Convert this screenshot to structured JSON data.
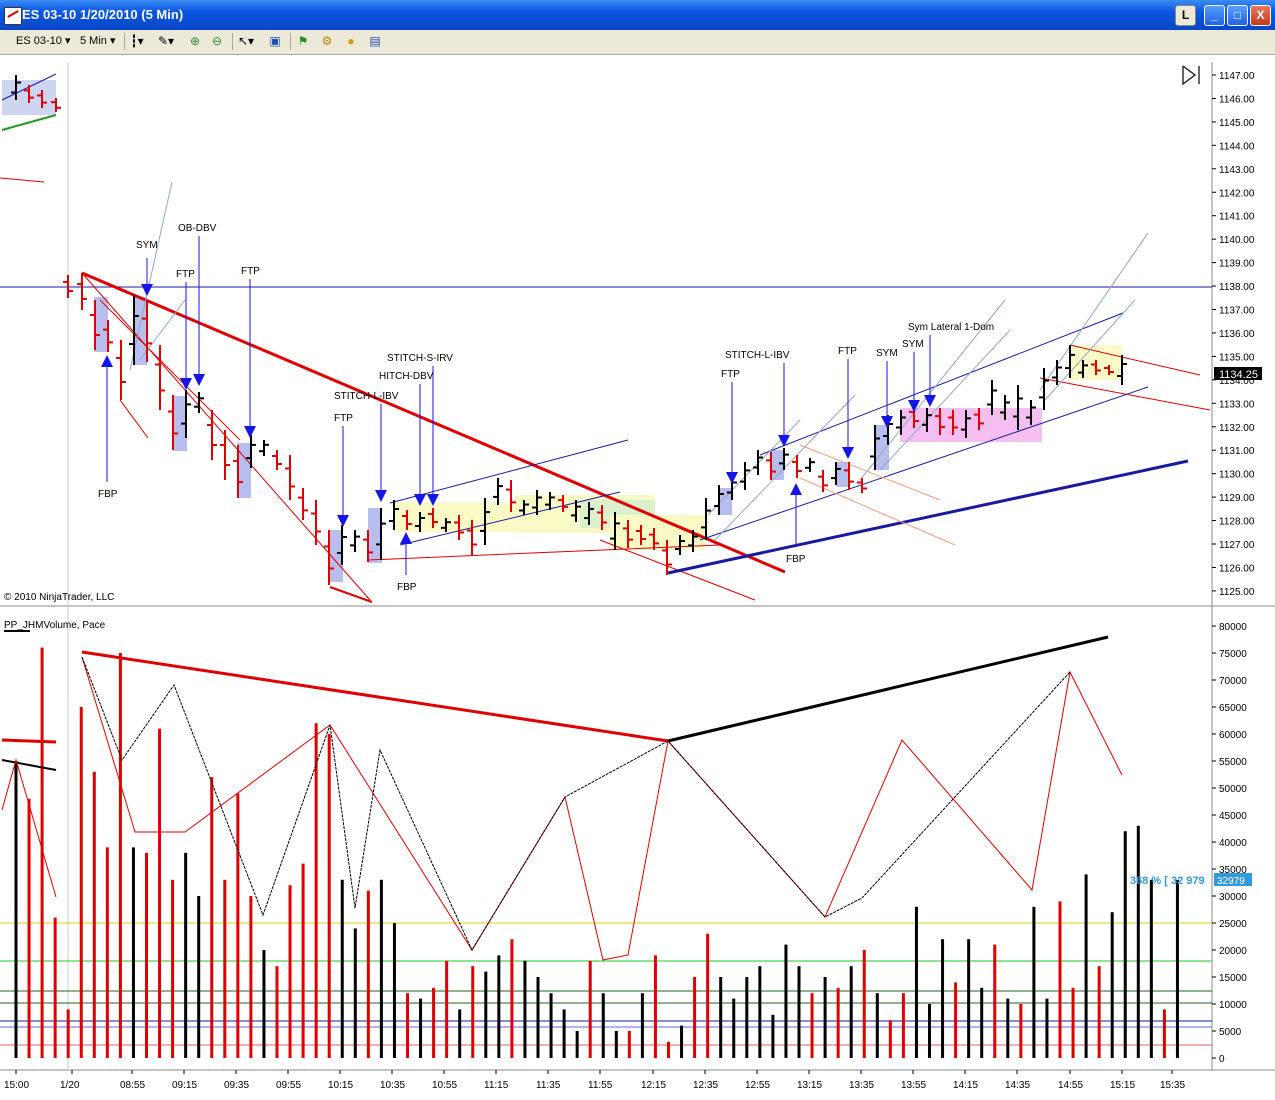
{
  "window": {
    "title": "ES 03-10  1/20/2010 (5 Min)",
    "btn_l": "L",
    "btn_min": "_",
    "btn_max": "□",
    "btn_close": "X"
  },
  "toolbar": {
    "instrument": "ES 03-10",
    "period": "5 Min",
    "icons": [
      "bar-type-icon",
      "draw-icon",
      "zoom-in-icon",
      "zoom-out-icon",
      "cursor-icon",
      "properties-icon",
      "strategy-icon",
      "indicator-icon",
      "data-box-icon"
    ]
  },
  "price_panel": {
    "copyright": "© 2010 NinjaTrader, LLC",
    "current_price": "1134.25",
    "price_axis": [
      "1147.00",
      "1146.00",
      "1145.00",
      "1144.00",
      "1143.00",
      "1142.00",
      "1141.00",
      "1140.00",
      "1139.00",
      "1138.00",
      "1137.00",
      "1136.00",
      "1135.00",
      "1134.00",
      "1133.00",
      "1132.00",
      "1131.00",
      "1130.00",
      "1129.00",
      "1128.00",
      "1127.00",
      "1126.00",
      "1125.00"
    ],
    "annotations": [
      "SYM",
      "OB-DBV",
      "FTP",
      "FTP",
      "FBP",
      "FTP",
      "STITCH-S-IRV",
      "HITCH-DBV",
      "STITCH-L-IBV",
      "FBP",
      "STITCH-L-IBV",
      "FTP",
      "FTP",
      "SYM",
      "SYM",
      "Sym Lateral 1-Dom",
      "FBP"
    ]
  },
  "volume_panel": {
    "label": "PP_JHMVolume, Pace",
    "pace_text": "368 % [ 32 979",
    "pace_value": "32979",
    "volume_axis": [
      "80000",
      "75000",
      "70000",
      "65000",
      "60000",
      "55000",
      "50000",
      "45000",
      "40000",
      "35000",
      "30000",
      "25000",
      "20000",
      "15000",
      "10000",
      "5000",
      "0"
    ]
  },
  "time_axis": [
    "15:00",
    "1/20",
    "08:55",
    "09:15",
    "09:35",
    "09:55",
    "10:15",
    "10:35",
    "10:55",
    "11:15",
    "11:35",
    "11:55",
    "12:15",
    "12:35",
    "12:55",
    "13:15",
    "13:35",
    "13:55",
    "14:15",
    "14:35",
    "14:55",
    "15:15",
    "15:35"
  ],
  "colors": {
    "up": "#000000",
    "down": "#e00000",
    "arrow": "#1515e6",
    "trend": "#e00000",
    "channel": "#1a1aa0",
    "pace": "#3399dd"
  },
  "volume_bars": [
    {
      "v": 55000,
      "c": "k"
    },
    {
      "v": 48000,
      "c": "r"
    },
    {
      "v": 76000,
      "c": "r"
    },
    {
      "v": 26000,
      "c": "r"
    },
    {
      "v": 9000,
      "c": "r"
    },
    {
      "v": 65000,
      "c": "r"
    },
    {
      "v": 53000,
      "c": "r"
    },
    {
      "v": 39000,
      "c": "r"
    },
    {
      "v": 75000,
      "c": "r"
    },
    {
      "v": 39000,
      "c": "k"
    },
    {
      "v": 38000,
      "c": "r"
    },
    {
      "v": 61000,
      "c": "r"
    },
    {
      "v": 33000,
      "c": "r"
    },
    {
      "v": 38000,
      "c": "k"
    },
    {
      "v": 30000,
      "c": "k"
    },
    {
      "v": 52000,
      "c": "r"
    },
    {
      "v": 33000,
      "c": "r"
    },
    {
      "v": 49000,
      "c": "r"
    },
    {
      "v": 30000,
      "c": "r"
    },
    {
      "v": 20000,
      "c": "k"
    },
    {
      "v": 17000,
      "c": "r"
    },
    {
      "v": 32000,
      "c": "r"
    },
    {
      "v": 36000,
      "c": "r"
    },
    {
      "v": 62000,
      "c": "r"
    },
    {
      "v": 60000,
      "c": "r"
    },
    {
      "v": 33000,
      "c": "k"
    },
    {
      "v": 24000,
      "c": "k"
    },
    {
      "v": 31000,
      "c": "r"
    },
    {
      "v": 33000,
      "c": "k"
    },
    {
      "v": 25000,
      "c": "k"
    },
    {
      "v": 12000,
      "c": "r"
    },
    {
      "v": 11000,
      "c": "k"
    },
    {
      "v": 13000,
      "c": "r"
    },
    {
      "v": 18000,
      "c": "r"
    },
    {
      "v": 9000,
      "c": "k"
    },
    {
      "v": 17000,
      "c": "r"
    },
    {
      "v": 16000,
      "c": "k"
    },
    {
      "v": 19000,
      "c": "k"
    },
    {
      "v": 22000,
      "c": "r"
    },
    {
      "v": 18000,
      "c": "k"
    },
    {
      "v": 15000,
      "c": "k"
    },
    {
      "v": 12000,
      "c": "k"
    },
    {
      "v": 9000,
      "c": "k"
    },
    {
      "v": 5000,
      "c": "k"
    },
    {
      "v": 18000,
      "c": "r"
    },
    {
      "v": 12000,
      "c": "k"
    },
    {
      "v": 5000,
      "c": "k"
    },
    {
      "v": 5000,
      "c": "r"
    },
    {
      "v": 12000,
      "c": "k"
    },
    {
      "v": 19000,
      "c": "r"
    },
    {
      "v": 3000,
      "c": "r"
    },
    {
      "v": 6000,
      "c": "k"
    },
    {
      "v": 15000,
      "c": "r"
    },
    {
      "v": 23000,
      "c": "r"
    },
    {
      "v": 15000,
      "c": "k"
    },
    {
      "v": 11000,
      "c": "k"
    },
    {
      "v": 15000,
      "c": "k"
    },
    {
      "v": 17000,
      "c": "k"
    },
    {
      "v": 8000,
      "c": "k"
    },
    {
      "v": 21000,
      "c": "k"
    },
    {
      "v": 17000,
      "c": "k"
    },
    {
      "v": 12000,
      "c": "r"
    },
    {
      "v": 15000,
      "c": "k"
    },
    {
      "v": 13000,
      "c": "r"
    },
    {
      "v": 17000,
      "c": "k"
    },
    {
      "v": 20000,
      "c": "r"
    },
    {
      "v": 12000,
      "c": "k"
    },
    {
      "v": 7000,
      "c": "r"
    },
    {
      "v": 12000,
      "c": "r"
    },
    {
      "v": 28000,
      "c": "k"
    },
    {
      "v": 10000,
      "c": "k"
    },
    {
      "v": 22000,
      "c": "k"
    },
    {
      "v": 14000,
      "c": "r"
    },
    {
      "v": 22000,
      "c": "k"
    },
    {
      "v": 13000,
      "c": "k"
    },
    {
      "v": 21000,
      "c": "r"
    },
    {
      "v": 11000,
      "c": "k"
    },
    {
      "v": 10000,
      "c": "r"
    },
    {
      "v": 28000,
      "c": "k"
    },
    {
      "v": 11000,
      "c": "k"
    },
    {
      "v": 29000,
      "c": "r"
    },
    {
      "v": 13000,
      "c": "r"
    },
    {
      "v": 34000,
      "c": "k"
    },
    {
      "v": 17000,
      "c": "r"
    },
    {
      "v": 27000,
      "c": "k"
    },
    {
      "v": 42000,
      "c": "k"
    },
    {
      "v": 43000,
      "c": "k"
    },
    {
      "v": 33000,
      "c": "k"
    },
    {
      "v": 9000,
      "c": "r"
    },
    {
      "v": 33000,
      "c": "k"
    }
  ]
}
